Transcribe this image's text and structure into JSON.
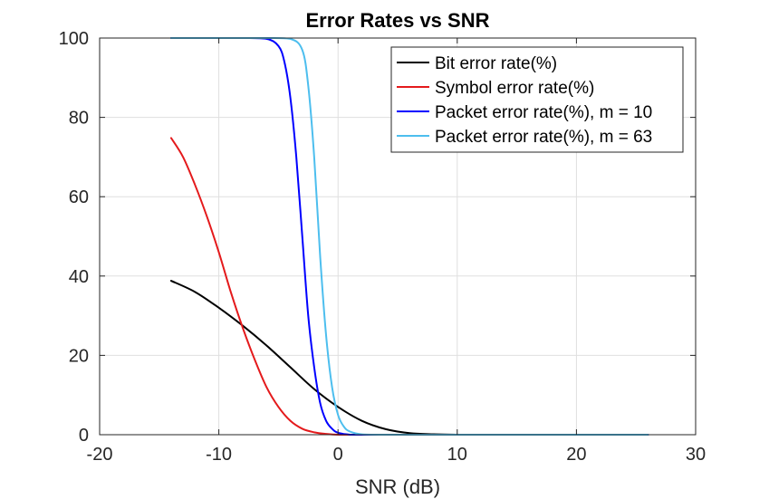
{
  "chart_data": {
    "type": "line",
    "title": "Error Rates vs SNR",
    "xlabel": "SNR (dB)",
    "ylabel": "",
    "xlim": [
      -20,
      30
    ],
    "ylim": [
      0,
      100
    ],
    "xticks": [
      -20,
      -10,
      0,
      10,
      20,
      30
    ],
    "yticks": [
      0,
      20,
      40,
      60,
      80,
      100
    ],
    "xtick_labels": [
      "-20",
      "-10",
      "0",
      "10",
      "20",
      "30"
    ],
    "ytick_labels": [
      "0",
      "20",
      "40",
      "60",
      "80",
      "100"
    ],
    "grid": true,
    "legend_position": "top-right",
    "series": [
      {
        "name": "Bit error rate(%)",
        "color": "#000000",
        "x": [
          -14,
          -12,
          -10,
          -8,
          -6,
          -4,
          -2,
          0,
          2,
          4,
          6,
          8,
          10,
          14,
          18,
          22,
          26
        ],
        "y": [
          38.8,
          36,
          32,
          27.5,
          22.5,
          17,
          11.5,
          7,
          3.5,
          1.4,
          0.4,
          0.1,
          0,
          0,
          0,
          0,
          0
        ]
      },
      {
        "name": "Symbol error rate(%)",
        "color": "#e41a1c",
        "x": [
          -14,
          -13,
          -12,
          -11,
          -10,
          -9,
          -8,
          -7,
          -6,
          -5,
          -4,
          -3,
          -2,
          -1,
          0,
          2,
          6,
          10,
          18,
          26
        ],
        "y": [
          74.8,
          70,
          63,
          55,
          46,
          36,
          27,
          19,
          12,
          7,
          3.5,
          1.5,
          0.6,
          0.2,
          0,
          0,
          0,
          0,
          0,
          0
        ]
      },
      {
        "name": "Packet error rate(%), m = 10",
        "color": "#0000ff",
        "x": [
          -14,
          -8,
          -6,
          -5,
          -4.5,
          -4,
          -3.5,
          -3,
          -2.5,
          -2,
          -1.5,
          -1,
          -0.5,
          0,
          1,
          2,
          6,
          10,
          18,
          26
        ],
        "y": [
          100,
          100,
          99.8,
          98,
          94,
          85,
          70,
          50,
          30,
          17,
          8,
          3.5,
          1.5,
          0.5,
          0,
          0,
          0,
          0,
          0,
          0
        ]
      },
      {
        "name": "Packet error rate(%), m = 63",
        "color": "#4dbeee",
        "x": [
          -14,
          -6,
          -4,
          -3,
          -2.5,
          -2,
          -1.5,
          -1,
          -0.5,
          0,
          0.5,
          1,
          2,
          4,
          10,
          18,
          26
        ],
        "y": [
          100,
          100,
          99.8,
          97,
          88,
          70,
          45,
          25,
          12,
          5,
          2,
          0.8,
          0.1,
          0,
          0,
          0,
          0
        ]
      }
    ]
  }
}
